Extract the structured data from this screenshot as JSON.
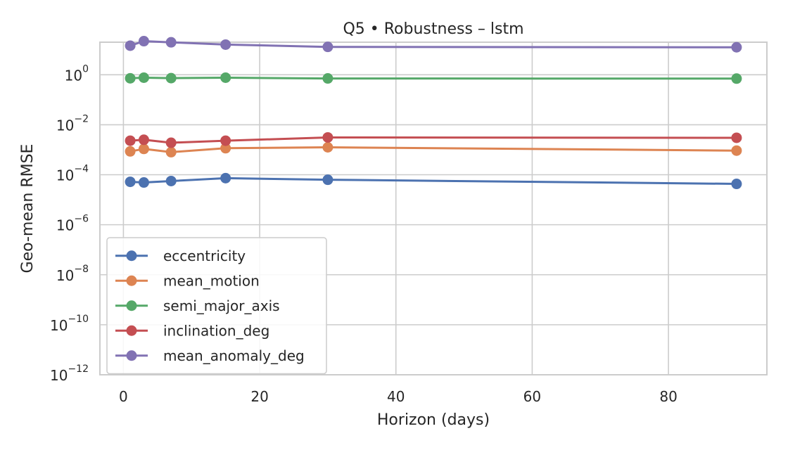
{
  "chart_data": {
    "type": "line",
    "title": "Q5 • Robustness – lstm",
    "xlabel": "Horizon (days)",
    "ylabel": "Geo-mean RMSE",
    "x": [
      1,
      3,
      7,
      15,
      30,
      90
    ],
    "xlim": [
      -3.45,
      94.45
    ],
    "xticks": [
      0,
      20,
      40,
      60,
      80
    ],
    "yscale": "log",
    "ylim": [
      1e-12,
      20
    ],
    "yticks": [
      {
        "value": 1e-12,
        "base": "10",
        "exp": "−12"
      },
      {
        "value": 1e-10,
        "base": "10",
        "exp": "−10"
      },
      {
        "value": 1e-08,
        "base": "10",
        "exp": "−8"
      },
      {
        "value": 1e-06,
        "base": "10",
        "exp": "−6"
      },
      {
        "value": 0.0001,
        "base": "10",
        "exp": "−4"
      },
      {
        "value": 0.01,
        "base": "10",
        "exp": "−2"
      },
      {
        "value": 1,
        "base": "10",
        "exp": "0"
      }
    ],
    "grid": true,
    "legend_position": "lower-left",
    "series": [
      {
        "name": "eccentricity",
        "color": "#4c72b0",
        "values": [
          5.2e-05,
          4.9e-05,
          5.6e-05,
          7.3e-05,
          6.3e-05,
          4.3e-05
        ]
      },
      {
        "name": "mean_motion",
        "color": "#dd8452",
        "values": [
          0.00086,
          0.00108,
          0.0008,
          0.00115,
          0.00125,
          0.00092
        ]
      },
      {
        "name": "semi_major_axis",
        "color": "#55a868",
        "values": [
          0.72,
          0.76,
          0.73,
          0.76,
          0.71,
          0.7
        ]
      },
      {
        "name": "inclination_deg",
        "color": "#c44e52",
        "values": [
          0.0023,
          0.0025,
          0.0019,
          0.0023,
          0.0031,
          0.003
        ]
      },
      {
        "name": "mean_anomaly_deg",
        "color": "#8172b3",
        "values": [
          14.5,
          22.0,
          19.8,
          16.0,
          13.0,
          12.5
        ]
      }
    ]
  }
}
